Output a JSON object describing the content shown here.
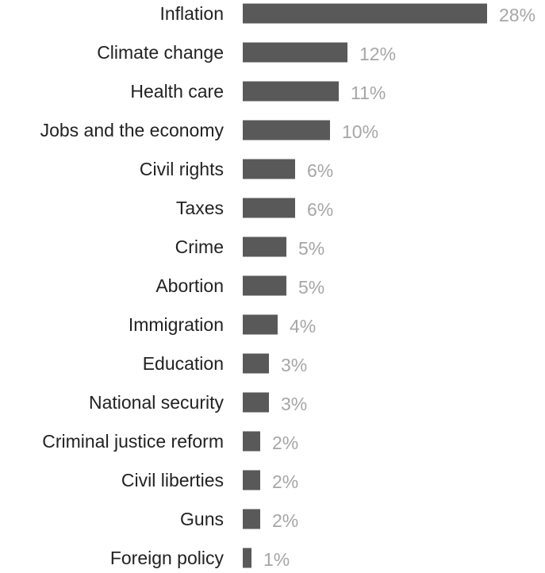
{
  "chart_data": {
    "type": "bar",
    "orientation": "horizontal",
    "categories": [
      "Inflation",
      "Climate change",
      "Health care",
      "Jobs and the economy",
      "Civil rights",
      "Taxes",
      "Crime",
      "Abortion",
      "Immigration",
      "Education",
      "National security",
      "Criminal justice reform",
      "Civil liberties",
      "Guns",
      "Foreign policy"
    ],
    "values": [
      28,
      12,
      11,
      10,
      6,
      6,
      5,
      5,
      4,
      3,
      3,
      2,
      2,
      2,
      1
    ],
    "value_labels": [
      "28%",
      "12%",
      "11%",
      "10%",
      "6%",
      "6%",
      "5%",
      "5%",
      "4%",
      "3%",
      "3%",
      "2%",
      "2%",
      "2%",
      "1%"
    ],
    "unit": "%",
    "grid": false,
    "legend": "none",
    "colors": {
      "bar": "#595959",
      "category_text": "#222222",
      "value_text": "#a6a6a6"
    }
  }
}
